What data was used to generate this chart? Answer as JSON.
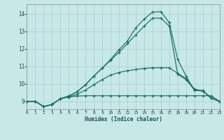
{
  "xlabel": "Humidex (Indice chaleur)",
  "bg_color": "#c8e8e8",
  "line_color": "#1a6e62",
  "grid_color": "#a8cccc",
  "xlim": [
    0,
    23
  ],
  "ylim": [
    8.55,
    14.55
  ],
  "xticks": [
    0,
    1,
    2,
    3,
    4,
    5,
    6,
    7,
    8,
    9,
    10,
    11,
    12,
    13,
    14,
    15,
    16,
    17,
    18,
    19,
    20,
    21,
    22,
    23
  ],
  "yticks": [
    9,
    10,
    11,
    12,
    13,
    14
  ],
  "line1_x": [
    0,
    1,
    2,
    3,
    4,
    5,
    6,
    7,
    8,
    9,
    10,
    11,
    12,
    13,
    14,
    15,
    16,
    17,
    18,
    19,
    20,
    21,
    22,
    23
  ],
  "line1_y": [
    9.0,
    9.0,
    8.7,
    8.82,
    9.15,
    9.25,
    9.3,
    9.32,
    9.32,
    9.32,
    9.32,
    9.32,
    9.32,
    9.32,
    9.32,
    9.32,
    9.32,
    9.32,
    9.32,
    9.32,
    9.32,
    9.32,
    9.32,
    9.0
  ],
  "line2_x": [
    0,
    1,
    2,
    3,
    4,
    5,
    6,
    7,
    8,
    9,
    10,
    11,
    12,
    13,
    14,
    15,
    16,
    17,
    18,
    19,
    20,
    21,
    22,
    23
  ],
  "line2_y": [
    9.0,
    9.0,
    8.7,
    8.82,
    9.15,
    9.25,
    9.4,
    9.65,
    9.95,
    10.25,
    10.5,
    10.65,
    10.75,
    10.82,
    10.88,
    10.92,
    10.92,
    10.92,
    10.6,
    10.3,
    9.7,
    9.6,
    9.2,
    9.0
  ],
  "line3_x": [
    0,
    1,
    2,
    3,
    4,
    5,
    6,
    7,
    8,
    9,
    10,
    11,
    12,
    13,
    14,
    15,
    16,
    17,
    18,
    19,
    20,
    21,
    22,
    23
  ],
  "line3_y": [
    9.0,
    9.0,
    8.7,
    8.82,
    9.15,
    9.3,
    9.55,
    9.95,
    10.45,
    10.9,
    11.35,
    11.8,
    12.3,
    12.8,
    13.3,
    13.75,
    13.75,
    13.3,
    10.55,
    10.25,
    9.65,
    9.58,
    9.18,
    9.0
  ],
  "line4_x": [
    0,
    1,
    2,
    3,
    4,
    5,
    6,
    7,
    8,
    9,
    10,
    11,
    12,
    13,
    14,
    15,
    16,
    17,
    18,
    19,
    20,
    21,
    22,
    23
  ],
  "line4_y": [
    9.0,
    9.0,
    8.7,
    8.82,
    9.15,
    9.3,
    9.55,
    9.95,
    10.45,
    10.9,
    11.4,
    11.95,
    12.45,
    13.2,
    13.7,
    14.1,
    14.12,
    13.5,
    11.4,
    10.45,
    9.62,
    9.62,
    9.18,
    9.0
  ]
}
